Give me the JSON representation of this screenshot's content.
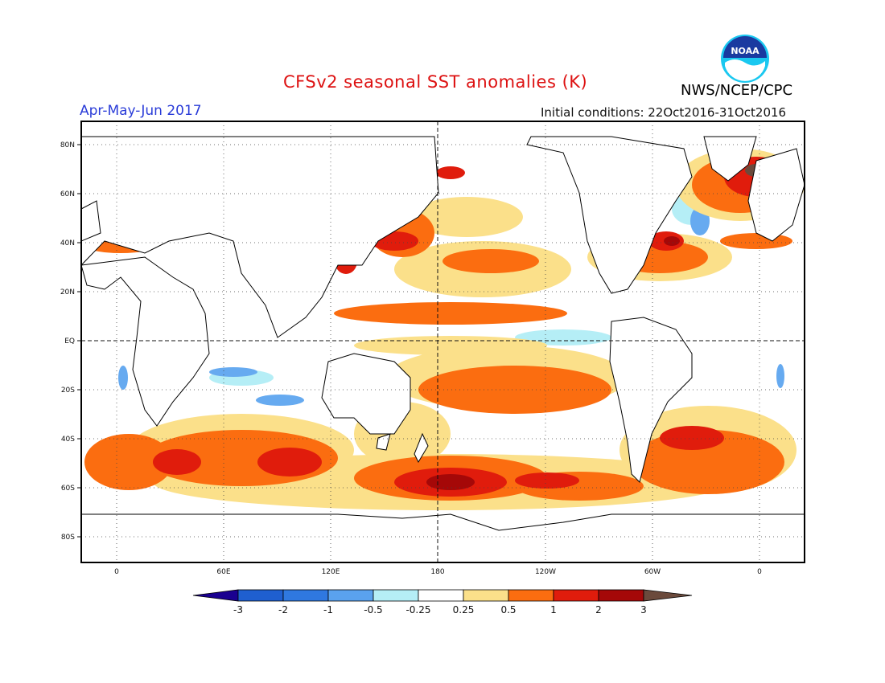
{
  "header": {
    "title": "CFSv2 seasonal SST anomalies (K)",
    "period": "Apr-May-Jun 2017",
    "initial_conditions": "Initial conditions: 22Oct2016-31Oct2016",
    "organization": "NWS/NCEP/CPC",
    "logo_text": "NOAA"
  },
  "map": {
    "lat_labels": [
      "80N",
      "60N",
      "40N",
      "20N",
      "EQ",
      "20S",
      "40S",
      "60S",
      "80S"
    ],
    "lon_labels": [
      "0",
      "60E",
      "120E",
      "180",
      "120W",
      "60W",
      "0"
    ]
  },
  "colorbar": {
    "labels": [
      "-3",
      "-2",
      "-1",
      "-0.5",
      "-0.25",
      "0.25",
      "0.5",
      "1",
      "2",
      "3"
    ],
    "colors": [
      "#1a0090",
      "#1f5fd0",
      "#3a86e6",
      "#66aaf0",
      "#b5eef6",
      "#ffffff",
      "#fbe08a",
      "#fb6d10",
      "#e01c0c",
      "#a50808",
      "#6b4a3c"
    ]
  },
  "colors": {
    "title": "#dd1111",
    "period": "#2a3cd8",
    "land_outline": "#000000",
    "anomaly_warm": "#fb6d10",
    "anomaly_cool": "#3a86e6"
  }
}
